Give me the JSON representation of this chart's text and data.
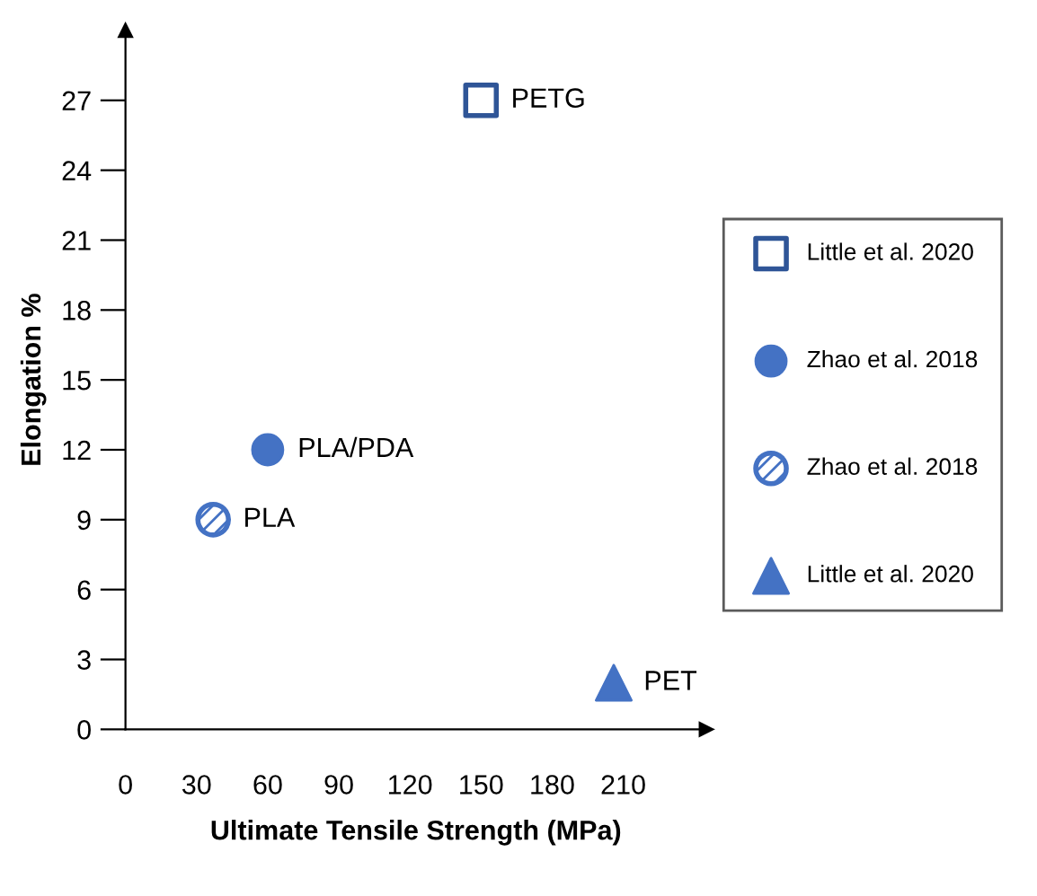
{
  "chart_data": {
    "type": "scatter",
    "xlabel": "Ultimate Tensile Strength (MPa)",
    "ylabel": "Elongation %",
    "xlim": [
      0,
      245
    ],
    "xticks": [
      0,
      30,
      60,
      90,
      120,
      150,
      180,
      210
    ],
    "ylim": [
      0,
      30
    ],
    "yticks": [
      0,
      3,
      6,
      9,
      12,
      15,
      18,
      21,
      24,
      27
    ],
    "grid": false,
    "legend": "right",
    "series": [
      {
        "name": "Little et al. 2020",
        "color": "#2f5597",
        "marker": "square",
        "x": [
          150
        ],
        "values": [
          27
        ]
      },
      {
        "name": "Zhao et al. 2018",
        "color": "#4472c4",
        "marker": "circle",
        "x": [
          60
        ],
        "values": [
          12
        ]
      },
      {
        "name": "Zhao et al. 2018",
        "color": "#4472c4",
        "marker": "circle",
        "x": [
          37
        ],
        "values": [
          9
        ]
      },
      {
        "name": "Little et al. 2020",
        "color": "#4472c4",
        "marker": "triangle",
        "x": [
          206
        ],
        "values": [
          2
        ]
      }
    ],
    "annotations": [
      {
        "text": "PETG",
        "x": 150,
        "y": 27
      },
      {
        "text": "PLA/PDA",
        "x": 60,
        "y": 12
      },
      {
        "text": "PLA",
        "x": 37,
        "y": 9
      },
      {
        "text": "PET",
        "x": 206,
        "y": 2
      }
    ]
  }
}
